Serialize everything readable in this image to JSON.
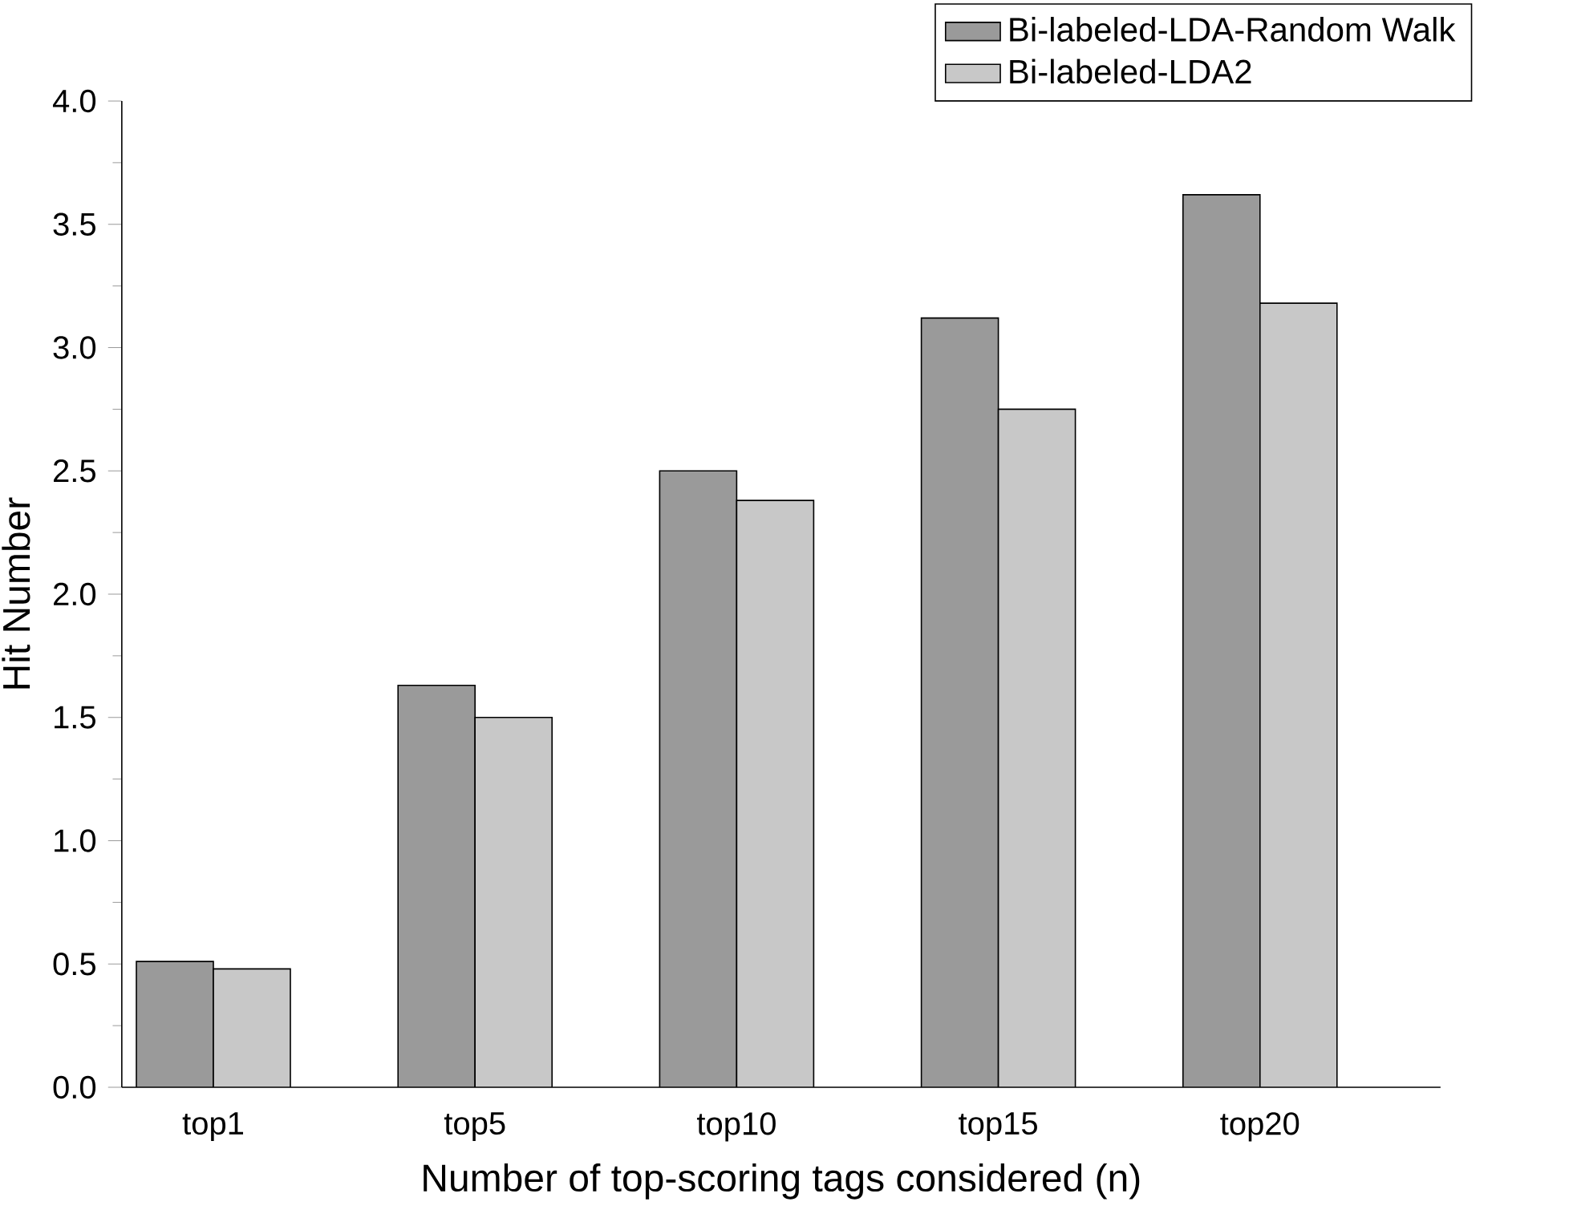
{
  "chart_data": {
    "type": "bar",
    "xlabel": "Number of top-scoring tags considered (n)",
    "ylabel": "Hit Number",
    "categories": [
      "top1",
      "top5",
      "top10",
      "top15",
      "top20"
    ],
    "series": [
      {
        "name": "Bi-labeled-LDA-Random Walk",
        "color": "#9a9a9a",
        "values": [
          0.51,
          1.63,
          2.5,
          3.12,
          3.62
        ]
      },
      {
        "name": "Bi-labeled-LDA2",
        "color": "#c8c8c8",
        "values": [
          0.48,
          1.5,
          2.38,
          2.75,
          3.18
        ]
      }
    ],
    "ylim": [
      0,
      4.0
    ],
    "yticks": [
      {
        "value": 0,
        "label": "0.0"
      },
      {
        "value": 0.5,
        "label": "0.5"
      },
      {
        "value": 1.0,
        "label": "1.0"
      },
      {
        "value": 1.5,
        "label": "1.5"
      },
      {
        "value": 2.0,
        "label": "2.0"
      },
      {
        "value": 2.5,
        "label": "2.5"
      },
      {
        "value": 3.0,
        "label": "3.0"
      },
      {
        "value": 3.5,
        "label": "3.5"
      },
      {
        "value": 4.0,
        "label": "4.0"
      }
    ],
    "legend": "top right",
    "grid": false
  }
}
